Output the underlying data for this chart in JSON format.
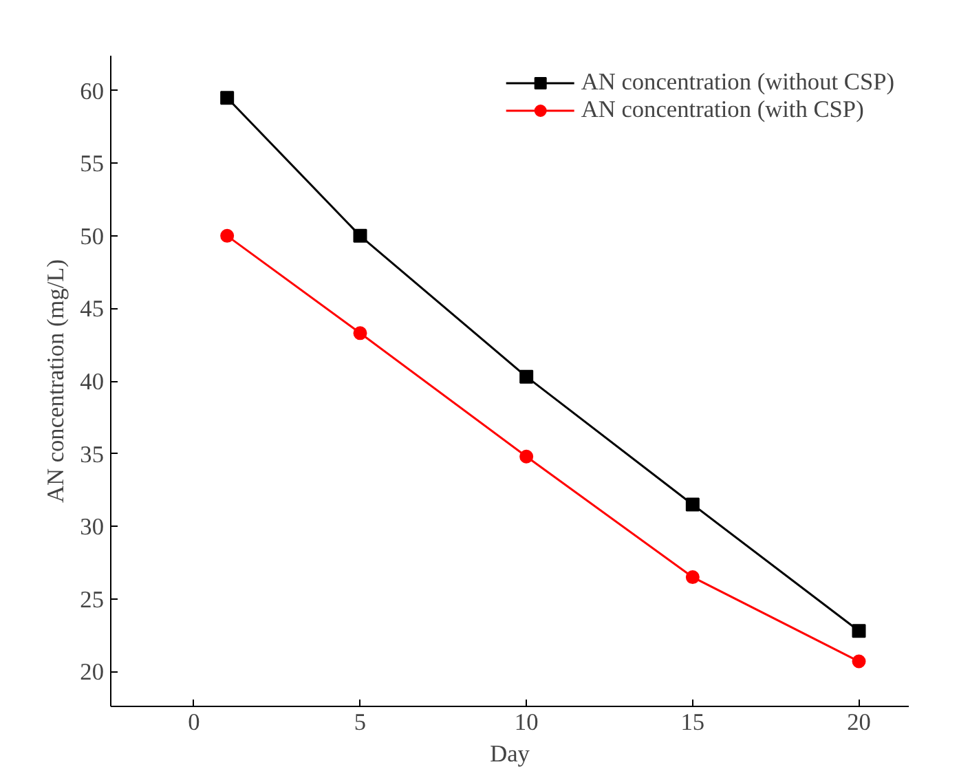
{
  "chart_data": {
    "type": "line",
    "xlabel": "Day",
    "ylabel": "AN concentration (mg/L)",
    "x": [
      1,
      5,
      10,
      15,
      20
    ],
    "series": [
      {
        "name": "AN concentration (without CSP)",
        "color": "#000000",
        "marker": "square",
        "values": [
          59.5,
          50.0,
          40.3,
          31.5,
          22.8
        ]
      },
      {
        "name": "AN concentration (with CSP)",
        "color": "#ff0000",
        "marker": "circle",
        "values": [
          50.0,
          43.3,
          34.8,
          26.5,
          20.7
        ]
      }
    ],
    "xlim": [
      -2.5,
      21.5
    ],
    "ylim": [
      17.6,
      62.4
    ],
    "xticks": [
      0,
      5,
      10,
      15,
      20
    ],
    "yticks": [
      20,
      25,
      30,
      35,
      40,
      45,
      50,
      55,
      60
    ],
    "legend": "top right",
    "grid": false,
    "line_style": "solid"
  }
}
